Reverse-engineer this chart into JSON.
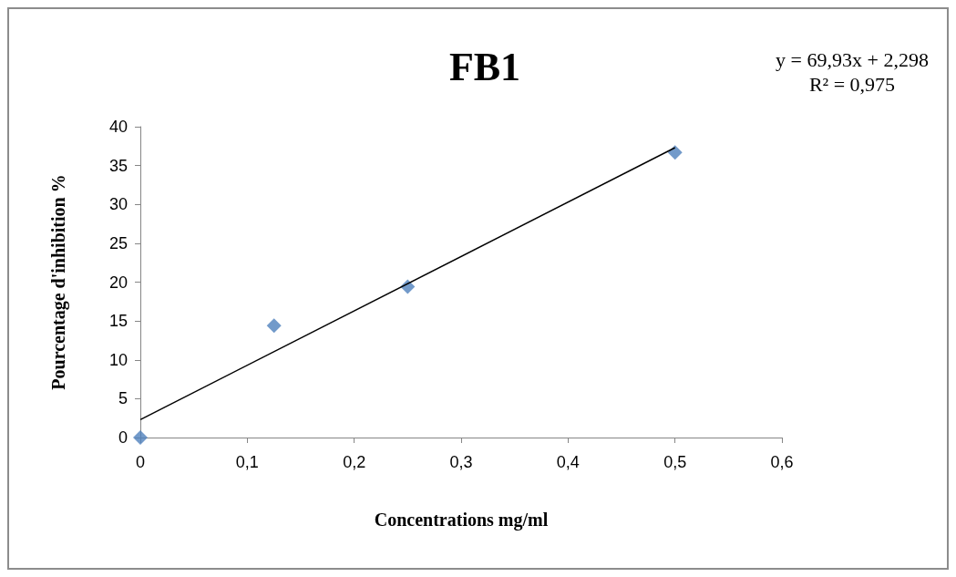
{
  "chart_data": {
    "type": "scatter",
    "title": "FB1",
    "xlabel": "Concentrations mg/ml",
    "ylabel": "Pourcentage d'inhibition %",
    "annotations": [
      "y = 69,93x + 2,298",
      "R² = 0,975"
    ],
    "xlim": [
      0,
      0.6
    ],
    "xticks": [
      {
        "value": 0,
        "label": "0"
      },
      {
        "value": 0.1,
        "label": "0,1"
      },
      {
        "value": 0.2,
        "label": "0,2"
      },
      {
        "value": 0.3,
        "label": "0,3"
      },
      {
        "value": 0.4,
        "label": "0,4"
      },
      {
        "value": 0.5,
        "label": "0,5"
      },
      {
        "value": 0.6,
        "label": "0,6"
      }
    ],
    "ylim": [
      0,
      40
    ],
    "yticks": [
      0,
      5,
      10,
      15,
      20,
      25,
      30,
      35,
      40
    ],
    "grid": false,
    "marker": "diamond",
    "series": [
      {
        "color": "#4f81bd",
        "x": [
          0,
          0.125,
          0.25,
          0.5
        ],
        "values": [
          0,
          14.4,
          19.4,
          36.7
        ]
      },
      {
        "type": "line",
        "marker": "none",
        "color": "#000000",
        "x": [
          0,
          0.5
        ],
        "values": [
          2.3,
          37.3
        ]
      }
    ]
  }
}
